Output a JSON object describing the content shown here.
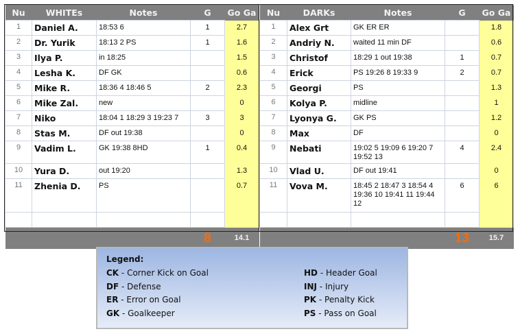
{
  "whites": {
    "headers": [
      "Nu",
      "WHITEs",
      "Notes",
      "G",
      "Go Ga"
    ],
    "rows": [
      {
        "nu": "1",
        "name": "Daniel A.",
        "notes": "18:53 6",
        "g": "1",
        "goga": "2.7"
      },
      {
        "nu": "2",
        "name": "Dr. Yurik",
        "notes": "18:13 2 PS",
        "g": "1",
        "goga": "1.6"
      },
      {
        "nu": "3",
        "name": "Ilya P.",
        "notes": "in 18:25",
        "g": "",
        "goga": "1.5"
      },
      {
        "nu": "4",
        "name": "Lesha K.",
        "notes": "DF GK",
        "g": "",
        "goga": "0.6"
      },
      {
        "nu": "5",
        "name": "Mike R.",
        "notes": "18:36 4 18:46 5",
        "g": "2",
        "goga": "2.3"
      },
      {
        "nu": "6",
        "name": "Mike Zal.",
        "notes": "new",
        "g": "",
        "goga": "0"
      },
      {
        "nu": "7",
        "name": "Niko",
        "notes": "18:04 1  18:29 3 19:23 7",
        "g": "3",
        "goga": "3"
      },
      {
        "nu": "8",
        "name": "Stas M.",
        "notes": "DF   out 19:38",
        "g": "",
        "goga": "0"
      },
      {
        "nu": "9",
        "name": "Vadim L.",
        "notes": "GK 19:38 8HD",
        "g": "1",
        "goga": "0.4"
      },
      {
        "nu": "10",
        "name": "Yura D.",
        "notes": "out 19:20",
        "g": "",
        "goga": "1.3"
      },
      {
        "nu": "11",
        "name": "Zhenia D.",
        "notes": "PS",
        "g": "",
        "goga": "0.7"
      },
      {
        "nu": "",
        "name": "",
        "notes": "",
        "g": "",
        "goga": ""
      }
    ],
    "total_g": "8",
    "total_goga": "14.1"
  },
  "darks": {
    "headers": [
      "Nu",
      "DARKs",
      "Notes",
      "G",
      "Go Ga"
    ],
    "rows": [
      {
        "nu": "1",
        "name": "Alex Grt",
        "notes": "GK ER ER",
        "g": "",
        "goga": "1.8"
      },
      {
        "nu": "2",
        "name": "Andriy N.",
        "notes": "waited 11 min DF",
        "g": "",
        "goga": "0.6"
      },
      {
        "nu": "3",
        "name": "Christof",
        "notes": "18:29 1   out 19:38",
        "g": "1",
        "goga": "0.7"
      },
      {
        "nu": "4",
        "name": "Erick",
        "notes": "PS 19:26 8  19:33 9",
        "g": "2",
        "goga": "0.7"
      },
      {
        "nu": "5",
        "name": "Georgi",
        "notes": "PS",
        "g": "",
        "goga": "1.3"
      },
      {
        "nu": "6",
        "name": "Kolya P.",
        "notes": "midline",
        "g": "",
        "goga": "1"
      },
      {
        "nu": "7",
        "name": "Lyonya G.",
        "notes": "GK PS",
        "g": "",
        "goga": "1.2"
      },
      {
        "nu": "8",
        "name": "Max",
        "notes": "DF",
        "g": "",
        "goga": "0"
      },
      {
        "nu": "9",
        "name": "Nebati",
        "notes": "19:02 5  19:09 6  19:20 7 19:52 13",
        "g": "4",
        "goga": "2.4"
      },
      {
        "nu": "10",
        "name": "Vlad U.",
        "notes": "DF out 19:41",
        "g": "",
        "goga": "0"
      },
      {
        "nu": "11",
        "name": "Vova M.",
        "notes": "18:45 2 18:47 3 18:54 4 19:36 10  19:41 11  19:44 12",
        "g": "6",
        "goga": "6"
      },
      {
        "nu": "",
        "name": "",
        "notes": "",
        "g": "",
        "goga": ""
      }
    ],
    "total_g": "13",
    "total_goga": "15.7"
  },
  "legend": {
    "title": "Legend:",
    "left": [
      {
        "code": "CK",
        "desc": " - Corner Kick on Goal"
      },
      {
        "code": "DF",
        "desc": " - Defense"
      },
      {
        "code": "ER",
        "desc": " - Error on Goal"
      },
      {
        "code": "GK",
        "desc": " - Goalkeeper"
      }
    ],
    "right": [
      {
        "code": "HD",
        "desc": " - Header Goal"
      },
      {
        "code": "INJ",
        "desc": " - Injury"
      },
      {
        "code": "PK",
        "desc": " - Penalty Kick"
      },
      {
        "code": "PS",
        "desc": " - Pass on Goal"
      }
    ]
  },
  "colors": {
    "header_bg": "#808080",
    "goga_bg": "#ffff99",
    "total_goals": "#ff6a00"
  }
}
